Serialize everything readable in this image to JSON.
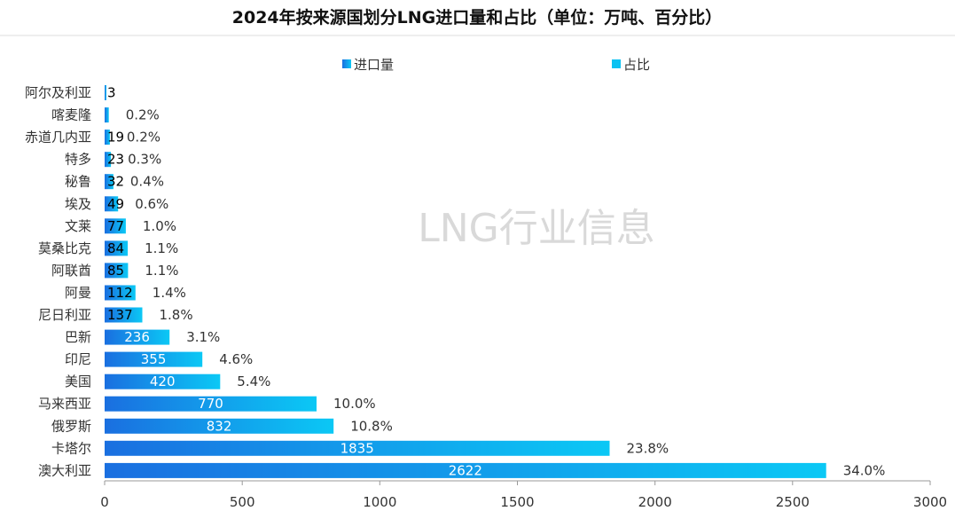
{
  "title": "2024年按来源国划分LNG进口量和占比（单位：万吨、百分比）",
  "watermark": "LNG行业信息",
  "legend": [
    {
      "name": "进口量",
      "color": "#1a6fe0"
    },
    {
      "name": "占比",
      "color": "#0bc2f2"
    }
  ],
  "chart_data": {
    "type": "bar",
    "orientation": "horizontal",
    "categories": [
      "阿尔及利亚",
      "喀麦隆",
      "赤道几内亚",
      "特多",
      "秘鲁",
      "埃及",
      "文莱",
      "莫桑比克",
      "阿联酋",
      "阿曼",
      "尼日利亚",
      "巴新",
      "印尼",
      "美国",
      "马来西亚",
      "俄罗斯",
      "卡塔尔",
      "澳大利亚"
    ],
    "series": [
      {
        "name": "进口量",
        "values": [
          3,
          15,
          19,
          23,
          32,
          49,
          77,
          84,
          85,
          112,
          137,
          236,
          355,
          420,
          770,
          832,
          1835,
          2622
        ],
        "labels": [
          "3",
          "",
          "19",
          "23",
          "32",
          "49",
          "77",
          "84",
          "85",
          "112",
          "137",
          "236",
          "355",
          "420",
          "770",
          "832",
          "1835",
          "2622"
        ]
      },
      {
        "name": "占比",
        "labels": [
          "",
          "0.2%",
          "0.2%",
          "0.3%",
          "0.4%",
          "0.6%",
          "1.0%",
          "1.1%",
          "1.1%",
          "1.4%",
          "1.8%",
          "3.1%",
          "4.6%",
          "5.4%",
          "10.0%",
          "10.8%",
          "23.8%",
          "34.0%"
        ]
      }
    ],
    "xlim": [
      0,
      3000
    ],
    "xticks": [
      "0",
      "500",
      "1000",
      "1500",
      "2000",
      "2500",
      "3000"
    ],
    "xlabel": "",
    "ylabel": "",
    "legend_position": "top",
    "grid": false
  }
}
